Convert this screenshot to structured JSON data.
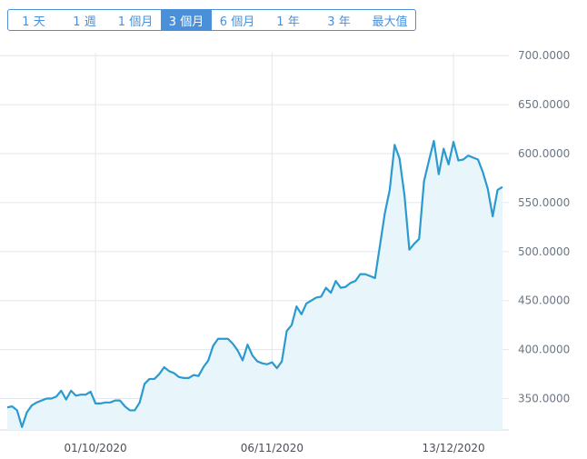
{
  "range_tabs": [
    {
      "label": "1 天",
      "active": false
    },
    {
      "label": "1 週",
      "active": false
    },
    {
      "label": "1 個月",
      "active": false
    },
    {
      "label": "3 個月",
      "active": true
    },
    {
      "label": "6 個月",
      "active": false
    },
    {
      "label": "1 年",
      "active": false
    },
    {
      "label": "3 年",
      "active": false
    },
    {
      "label": "最大值",
      "active": false
    }
  ],
  "colors": {
    "accent": "#4a90d9",
    "line": "#2b9ad0",
    "fill": "#e8f5fb",
    "grid": "#e3e6ea"
  },
  "chart_data": {
    "type": "area",
    "title": "",
    "xlabel": "",
    "ylabel": "",
    "ylim": [
      318,
      703
    ],
    "yticks": [
      350,
      400,
      450,
      500,
      550,
      600,
      650,
      700
    ],
    "ytick_labels": [
      "350.0000",
      "400.0000",
      "450.0000",
      "500.0000",
      "550.0000",
      "600.0000",
      "650.0000",
      "700.0000"
    ],
    "xticks": [
      "01/10/2020",
      "06/11/2020",
      "13/12/2020"
    ],
    "grid": true,
    "x": [
      "2020-09-13",
      "2020-09-14",
      "2020-09-15",
      "2020-09-16",
      "2020-09-17",
      "2020-09-18",
      "2020-09-19",
      "2020-09-20",
      "2020-09-21",
      "2020-09-22",
      "2020-09-23",
      "2020-09-24",
      "2020-09-25",
      "2020-09-26",
      "2020-09-27",
      "2020-09-28",
      "2020-09-29",
      "2020-09-30",
      "2020-10-01",
      "2020-10-02",
      "2020-10-03",
      "2020-10-04",
      "2020-10-05",
      "2020-10-06",
      "2020-10-07",
      "2020-10-08",
      "2020-10-09",
      "2020-10-10",
      "2020-10-11",
      "2020-10-12",
      "2020-10-13",
      "2020-10-14",
      "2020-10-15",
      "2020-10-16",
      "2020-10-17",
      "2020-10-18",
      "2020-10-19",
      "2020-10-20",
      "2020-10-21",
      "2020-10-22",
      "2020-10-23",
      "2020-10-24",
      "2020-10-25",
      "2020-10-26",
      "2020-10-27",
      "2020-10-28",
      "2020-10-29",
      "2020-10-30",
      "2020-10-31",
      "2020-11-01",
      "2020-11-02",
      "2020-11-03",
      "2020-11-04",
      "2020-11-05",
      "2020-11-06",
      "2020-11-07",
      "2020-11-08",
      "2020-11-09",
      "2020-11-10",
      "2020-11-11",
      "2020-11-12",
      "2020-11-13",
      "2020-11-14",
      "2020-11-15",
      "2020-11-16",
      "2020-11-17",
      "2020-11-18",
      "2020-11-19",
      "2020-11-20",
      "2020-11-21",
      "2020-11-22",
      "2020-11-23",
      "2020-11-24",
      "2020-11-25",
      "2020-11-26",
      "2020-11-27",
      "2020-11-28",
      "2020-11-29",
      "2020-11-30",
      "2020-12-01",
      "2020-12-02",
      "2020-12-03",
      "2020-12-04",
      "2020-12-05",
      "2020-12-06",
      "2020-12-07",
      "2020-12-08",
      "2020-12-09",
      "2020-12-10",
      "2020-12-11",
      "2020-12-12",
      "2020-12-13",
      "2020-12-14",
      "2020-12-15",
      "2020-12-16",
      "2020-12-17",
      "2020-12-18",
      "2020-12-19",
      "2020-12-20",
      "2020-12-21",
      "2020-12-22",
      "2020-12-23"
    ],
    "values": [
      341,
      342,
      338,
      321,
      336,
      343,
      346,
      348,
      350,
      350,
      352,
      358,
      349,
      358,
      353,
      354,
      354,
      357,
      345,
      345,
      346,
      346,
      348,
      348,
      342,
      338,
      338,
      346,
      365,
      370,
      370,
      375,
      382,
      378,
      376,
      372,
      371,
      371,
      374,
      373,
      382,
      389,
      404,
      411,
      411,
      411,
      406,
      399,
      389,
      405,
      394,
      388,
      386,
      385,
      387,
      381,
      388,
      419,
      425,
      444,
      436,
      447,
      450,
      453,
      454,
      463,
      458,
      470,
      463,
      464,
      468,
      470,
      477,
      477,
      475,
      473,
      506,
      539,
      563,
      609,
      595,
      558,
      502,
      508,
      513,
      572,
      593,
      613,
      579,
      605,
      589,
      612,
      593,
      594,
      598,
      596,
      594,
      581,
      564,
      536,
      563,
      566
    ]
  }
}
